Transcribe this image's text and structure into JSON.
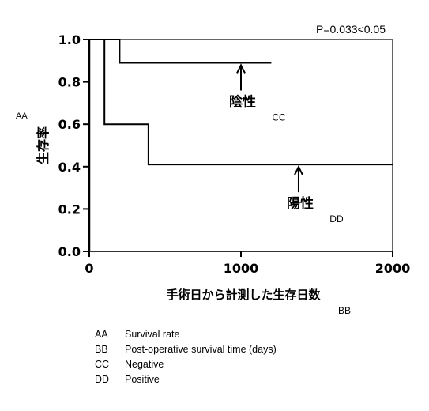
{
  "chart_data": {
    "type": "line",
    "title": "",
    "pvalue_text": "P=0.033<0.05",
    "ylabel": "生存率",
    "ylabel_tag": "AA",
    "xlabel": "手術日から計測した生存日数",
    "xlabel_tag": "BB",
    "xlim": [
      0,
      2000
    ],
    "ylim": [
      0.0,
      1.0
    ],
    "x_ticks": [
      0,
      1000,
      2000
    ],
    "x_tick_labels": [
      "0",
      "1000",
      "2000"
    ],
    "y_ticks": [
      0.0,
      0.2,
      0.4,
      0.6,
      0.8,
      1.0
    ],
    "y_tick_labels": [
      "0.0",
      "0.2",
      "0.4",
      "0.6",
      "0.8",
      "1.0"
    ],
    "series": [
      {
        "name": "陰性",
        "tag": "CC",
        "points": [
          [
            0,
            1.0
          ],
          [
            200,
            1.0
          ],
          [
            200,
            0.89
          ],
          [
            1200,
            0.89
          ]
        ]
      },
      {
        "name": "陽性",
        "tag": "DD",
        "points": [
          [
            0,
            1.0
          ],
          [
            100,
            1.0
          ],
          [
            100,
            0.6
          ],
          [
            390,
            0.6
          ],
          [
            390,
            0.41
          ],
          [
            2000,
            0.41
          ]
        ]
      }
    ],
    "annotations": [
      {
        "series": "陰性",
        "label": "陰性",
        "tag": "CC",
        "arrow_x": 1000,
        "arrow_y": 0.89
      },
      {
        "series": "陽性",
        "label": "陽性",
        "tag": "DD",
        "arrow_x": 1380,
        "arrow_y": 0.41
      }
    ]
  },
  "legend": [
    {
      "key": "AA",
      "text": "Survival rate"
    },
    {
      "key": "BB",
      "text": "Post-operative survival time (days)"
    },
    {
      "key": "CC",
      "text": "Negative"
    },
    {
      "key": "DD",
      "text": "Positive"
    }
  ]
}
